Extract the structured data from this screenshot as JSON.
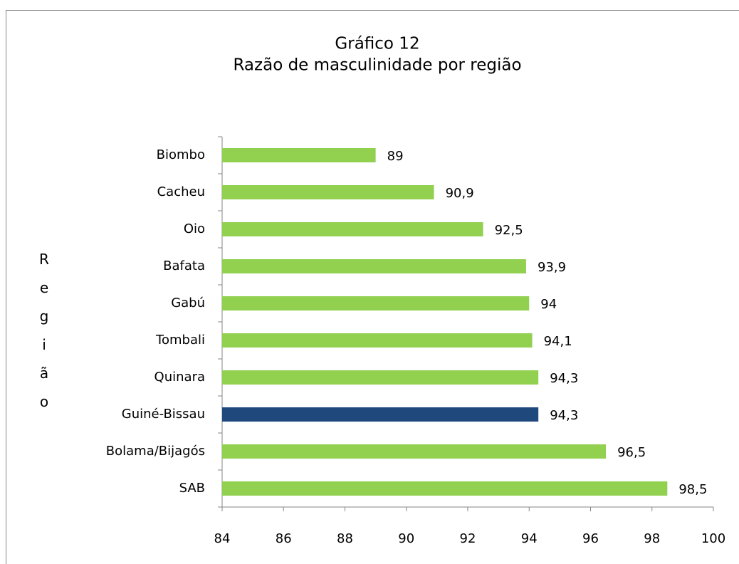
{
  "chart_data": {
    "type": "barh",
    "title": [
      "Gráfico 12",
      "Razão de masculinidade por região"
    ],
    "y_label": "Região",
    "categories": [
      "Biombo",
      "Cacheu",
      "Oio",
      "Bafata",
      "Gabú",
      "Tombali",
      "Quinara",
      "Guiné-Bissau",
      "Bolama/Bijagós",
      "SAB"
    ],
    "values": [
      89,
      90.9,
      92.5,
      93.9,
      94,
      94.1,
      94.3,
      94.3,
      96.5,
      98.5
    ],
    "value_labels": [
      "89",
      "90,9",
      "92,5",
      "93,9",
      "94",
      "94,1",
      "94,3",
      "94,3",
      "96,5",
      "98,5"
    ],
    "colors": [
      "#92d050",
      "#92d050",
      "#92d050",
      "#92d050",
      "#92d050",
      "#92d050",
      "#92d050",
      "#1f497d",
      "#92d050",
      "#92d050"
    ],
    "xlim": [
      84,
      100
    ],
    "xticks": [
      84,
      86,
      88,
      90,
      92,
      94,
      96,
      98,
      100
    ]
  }
}
